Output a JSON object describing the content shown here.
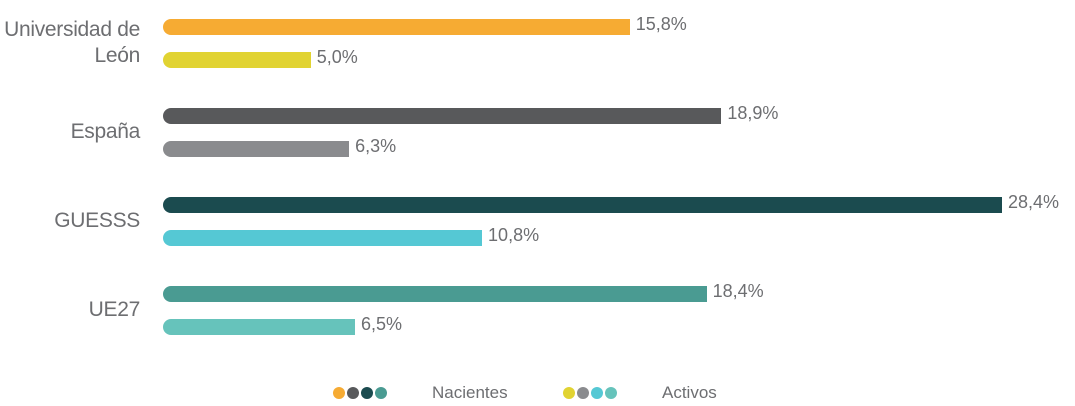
{
  "chart_data": {
    "type": "bar",
    "categories": [
      "Universidad de León",
      "España",
      "GUESSS",
      "UE27"
    ],
    "series": [
      {
        "name": "Nacientes",
        "colors": [
          "#f6ab33",
          "#58595b",
          "#1b4b4f",
          "#4a9b92"
        ],
        "values": [
          15.8,
          18.9,
          28.4,
          18.4
        ],
        "value_labels": [
          "15,8%",
          "18,9%",
          "28,4%",
          "18,4%"
        ]
      },
      {
        "name": "Activos",
        "colors": [
          "#e1d332",
          "#8a8b8e",
          "#55c8d4",
          "#66c3bb"
        ],
        "values": [
          5.0,
          6.3,
          10.8,
          6.5
        ],
        "value_labels": [
          "5,0%",
          "6,3%",
          "10,8%",
          "6,5%"
        ]
      }
    ]
  }
}
